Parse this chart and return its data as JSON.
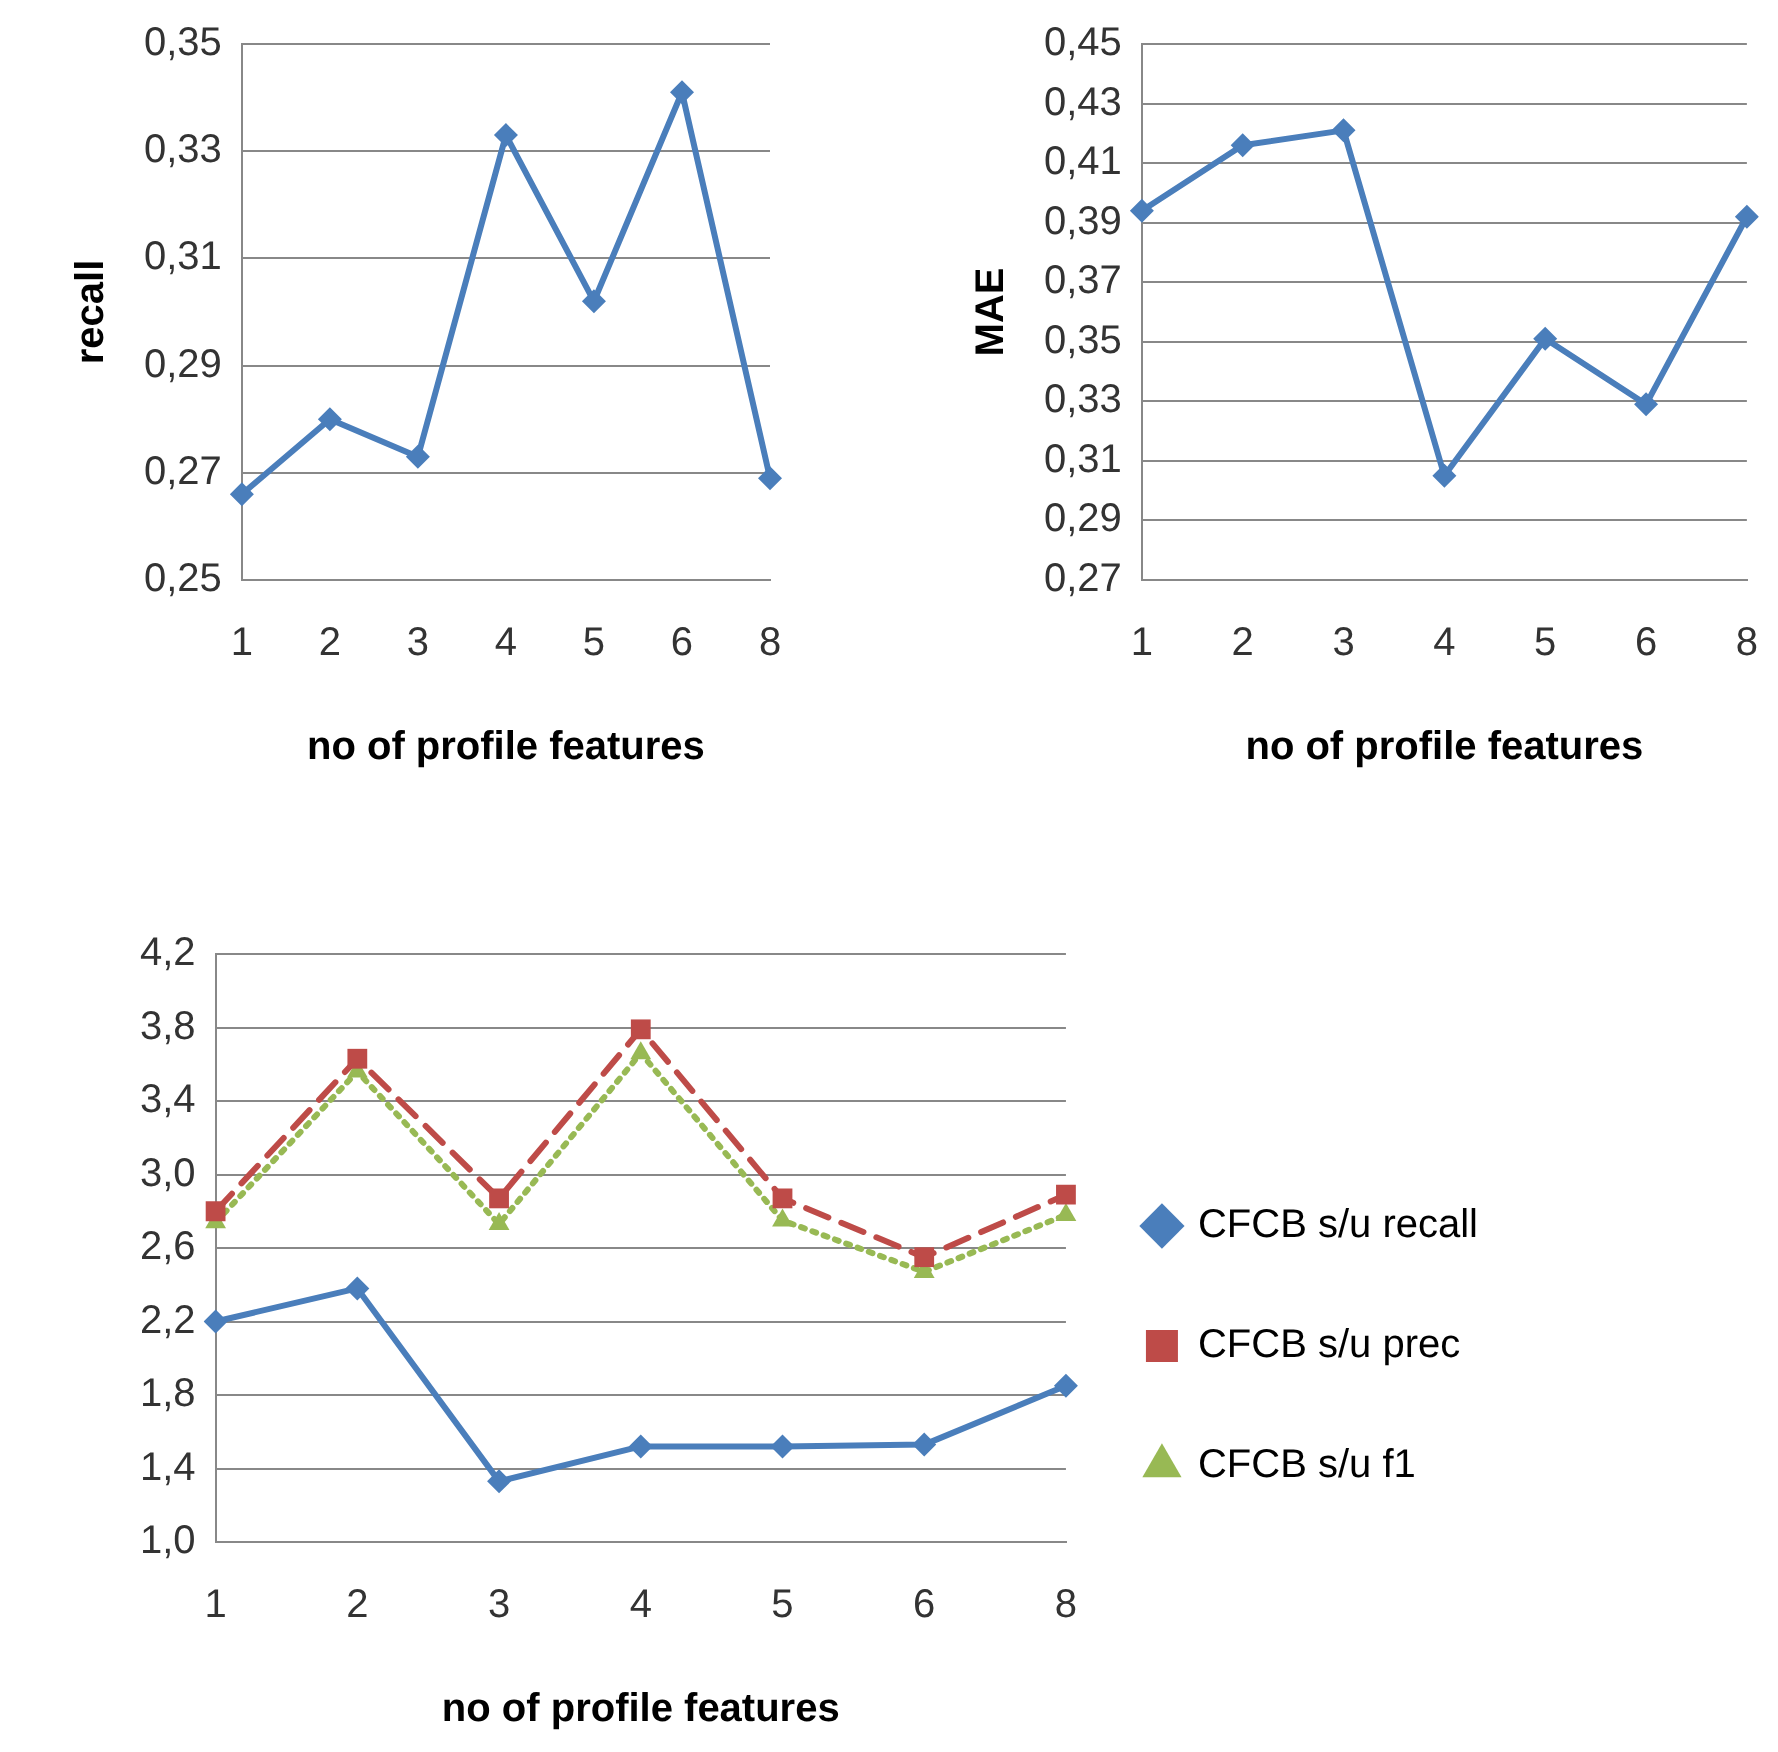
{
  "chart_data": [
    {
      "type": "line",
      "xlabel": "no of profile features",
      "ylabel": "recall",
      "categories": [
        "1",
        "2",
        "3",
        "4",
        "5",
        "6",
        "8"
      ],
      "series": [
        {
          "color": "#4a7ebb",
          "values": [
            0.266,
            0.28,
            0.273,
            0.333,
            0.302,
            0.341,
            0.269
          ]
        }
      ],
      "ylim": [
        0.25,
        0.35
      ],
      "yticks": [
        {
          "value": 0.25,
          "label": "0,25"
        },
        {
          "value": 0.27,
          "label": "0,27"
        },
        {
          "value": 0.29,
          "label": "0,29"
        },
        {
          "value": 0.31,
          "label": "0,31"
        },
        {
          "value": 0.33,
          "label": "0,33"
        },
        {
          "value": 0.35,
          "label": "0,35"
        }
      ],
      "grid": "y",
      "legend": false,
      "marker": "diamond",
      "line_style": "solid"
    },
    {
      "type": "line",
      "xlabel": "no of profile features",
      "ylabel": "MAE",
      "categories": [
        "1",
        "2",
        "3",
        "4",
        "5",
        "6",
        "8"
      ],
      "series": [
        {
          "color": "#4a7ebb",
          "values": [
            0.394,
            0.416,
            0.421,
            0.305,
            0.351,
            0.329,
            0.392
          ]
        }
      ],
      "ylim": [
        0.27,
        0.45
      ],
      "yticks": [
        {
          "value": 0.27,
          "label": "0,27"
        },
        {
          "value": 0.29,
          "label": "0,29"
        },
        {
          "value": 0.31,
          "label": "0,31"
        },
        {
          "value": 0.33,
          "label": "0,33"
        },
        {
          "value": 0.35,
          "label": "0,35"
        },
        {
          "value": 0.37,
          "label": "0,37"
        },
        {
          "value": 0.39,
          "label": "0,39"
        },
        {
          "value": 0.41,
          "label": "0,41"
        },
        {
          "value": 0.43,
          "label": "0,43"
        },
        {
          "value": 0.45,
          "label": "0,45"
        }
      ],
      "grid": "y",
      "legend": false,
      "marker": "diamond",
      "line_style": "solid"
    },
    {
      "type": "line",
      "xlabel": "no of profile features",
      "categories": [
        "1",
        "2",
        "3",
        "4",
        "5",
        "6",
        "8"
      ],
      "series": [
        {
          "name": "CFCB s/u recall",
          "color": "#4a7ebb",
          "marker": "diamond",
          "line_style": "solid",
          "values": [
            2.2,
            2.38,
            1.33,
            1.52,
            1.52,
            1.53,
            1.85
          ]
        },
        {
          "name": "CFCB s/u prec",
          "color": "#be4b48",
          "marker": "square",
          "line_style": "dashed",
          "values": [
            2.8,
            3.63,
            2.87,
            3.79,
            2.87,
            2.55,
            2.89
          ]
        },
        {
          "name": "CFCB s/u f1",
          "color": "#98b954",
          "marker": "triangle",
          "line_style": "dotted",
          "values": [
            2.74,
            3.56,
            2.73,
            3.66,
            2.75,
            2.47,
            2.78
          ]
        }
      ],
      "ylim": [
        1.0,
        4.2
      ],
      "yticks": [
        {
          "value": 1.0,
          "label": "1,0"
        },
        {
          "value": 1.4,
          "label": "1,4"
        },
        {
          "value": 1.8,
          "label": "1,8"
        },
        {
          "value": 2.2,
          "label": "2,2"
        },
        {
          "value": 2.6,
          "label": "2,6"
        },
        {
          "value": 3.0,
          "label": "3,0"
        },
        {
          "value": 3.4,
          "label": "3,4"
        },
        {
          "value": 3.8,
          "label": "3,8"
        },
        {
          "value": 4.2,
          "label": "4,2"
        }
      ],
      "grid": "y",
      "legend": "right"
    }
  ]
}
